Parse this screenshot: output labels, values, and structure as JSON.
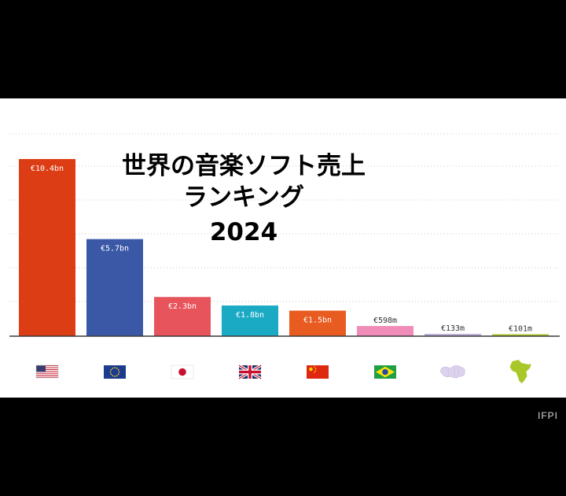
{
  "chart_data": {
    "type": "bar",
    "title_lines": [
      "世界の音楽ソフト売上",
      "ランキング",
      "2024"
    ],
    "categories": [
      "USA",
      "EU",
      "Japan",
      "UK",
      "China",
      "Brazil",
      "Middle East & North Africa",
      "Sub-Saharan Africa"
    ],
    "values": [
      10.4,
      5.7,
      2.3,
      1.8,
      1.5,
      0.598,
      0.133,
      0.101
    ],
    "value_unit": "€bn",
    "data_labels": [
      "€10.4bn",
      "€5.7bn",
      "€2.3bn",
      "€1.8bn",
      "€1.5bn",
      "€598m",
      "€133m",
      "€101m"
    ],
    "colors": [
      "#dd3d14",
      "#3b58a6",
      "#e8545c",
      "#1aaac4",
      "#e85c22",
      "#f08cb8",
      "#b9aad8",
      "#a8c82a"
    ],
    "category_icons": [
      "usa-flag-icon",
      "eu-flag-icon",
      "japan-flag-icon",
      "uk-flag-icon",
      "china-flag-icon",
      "brazil-flag-icon",
      "mena-map-icon",
      "africa-map-icon"
    ],
    "ylim": [
      0,
      10.4
    ],
    "grid": true,
    "legend": "none"
  },
  "source": "IFPI"
}
